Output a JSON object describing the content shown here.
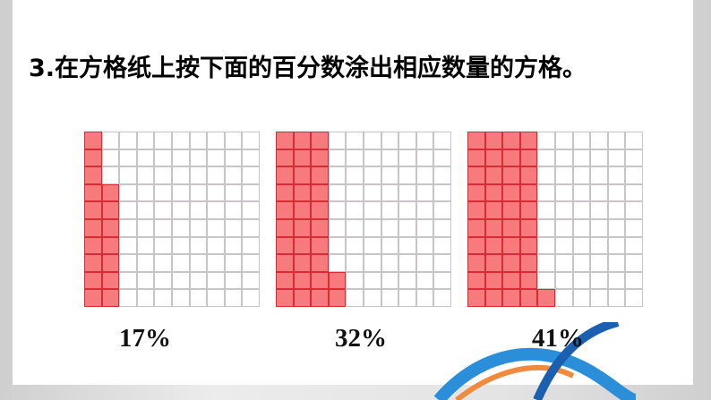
{
  "title": "3.在方格纸上按下面的百分数涂出相应数量的方格。",
  "grids": [
    {
      "percent": 17,
      "label": "17%"
    },
    {
      "percent": 32,
      "label": "32%"
    },
    {
      "percent": 41,
      "label": "41%"
    }
  ],
  "colors": {
    "fill": "#f77a7c",
    "fill_border": "#d72c35",
    "grid_line": "#c9c4c8"
  }
}
